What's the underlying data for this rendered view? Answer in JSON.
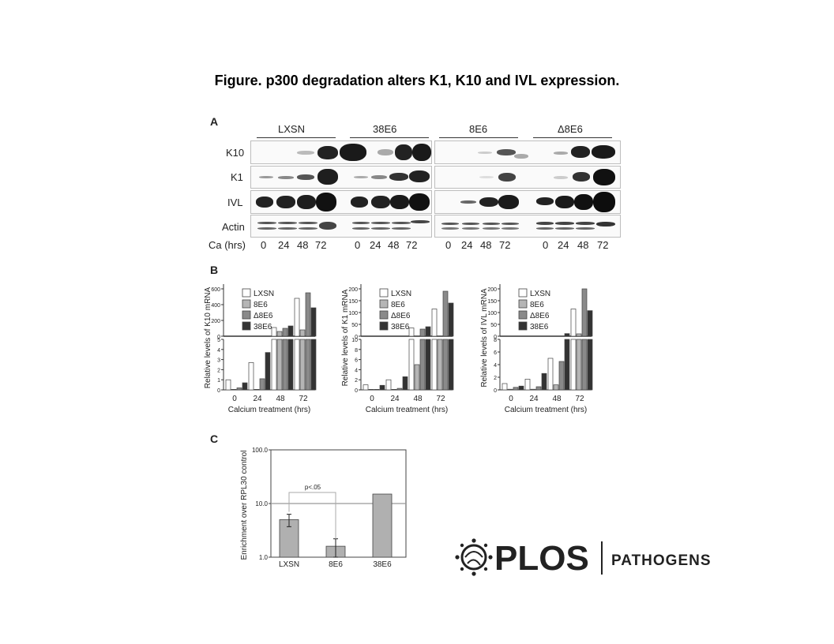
{
  "title": "Figure. p300 degradation alters K1, K10 and IVL expression.",
  "panelA": {
    "letter": "A",
    "groups": [
      "LXSN",
      "38E6",
      "8E6",
      "Δ8E6"
    ],
    "rows": [
      "K10",
      "K1",
      "IVL",
      "Actin"
    ],
    "time_label": "Ca (hrs)",
    "times": [
      "0",
      "24",
      "48",
      "72"
    ]
  },
  "panelB": {
    "letter": "B",
    "legend": [
      "LXSN",
      "8E6",
      "Δ8E6",
      "38E6"
    ],
    "legend_colors": [
      "#ffffff",
      "#b5b5b5",
      "#8a8a8a",
      "#333333"
    ],
    "xlabel": "Calcium treatment (hrs)",
    "categories": [
      "0",
      "24",
      "48",
      "72"
    ],
    "charts": [
      {
        "ylabel": "Relative levels of K10 mRNA",
        "top_ticks": [
          "600",
          "400",
          "200",
          "0"
        ],
        "bottom_ticks": [
          "5",
          "4",
          "3",
          "2",
          "1",
          "0"
        ],
        "break_lo": 5,
        "top_max": 600,
        "values": [
          [
            1.0,
            2.7,
            110,
            480
          ],
          [
            0.05,
            0.05,
            60,
            80
          ],
          [
            0.2,
            1.1,
            100,
            550
          ],
          [
            0.7,
            3.7,
            130,
            360
          ]
        ]
      },
      {
        "ylabel": "Relative levels of K1 mRNA",
        "top_ticks": [
          "200",
          "150",
          "100",
          "50",
          "0"
        ],
        "bottom_ticks": [
          "10",
          "8",
          "6",
          "4",
          "2",
          "0"
        ],
        "break_lo": 10,
        "top_max": 200,
        "values": [
          [
            1.0,
            2.0,
            35,
            115
          ],
          [
            0.1,
            0.1,
            5,
            10
          ],
          [
            0.1,
            0.3,
            30,
            190
          ],
          [
            0.9,
            2.6,
            40,
            140
          ]
        ]
      },
      {
        "ylabel": "Relative levels of IVL mRNA",
        "top_ticks": [
          "200",
          "150",
          "100",
          "50",
          "0"
        ],
        "bottom_ticks": [
          "8",
          "6",
          "4",
          "2",
          "0"
        ],
        "break_lo": 8,
        "top_max": 200,
        "values": [
          [
            1.0,
            1.7,
            5.0,
            115
          ],
          [
            0.1,
            0.1,
            0.8,
            10
          ],
          [
            0.4,
            0.5,
            4.5,
            200
          ],
          [
            0.6,
            2.6,
            11,
            108
          ]
        ]
      }
    ]
  },
  "panelC": {
    "letter": "C",
    "ylabel": "Enrichment over RPL30 control",
    "y_ticks": [
      "100.0",
      "10.0",
      "1.0"
    ],
    "categories": [
      "LXSN",
      "8E6",
      "38E6"
    ],
    "values": [
      5.0,
      1.6,
      15.0
    ],
    "errors": [
      1.3,
      0.6,
      0
    ],
    "annotation": "p<.05"
  },
  "chart_data": [
    {
      "type": "bar",
      "title": "",
      "xlabel": "Calcium treatment (hrs)",
      "ylabel": "Relative levels of K10 mRNA",
      "categories": [
        "0",
        "24",
        "48",
        "72"
      ],
      "series": [
        {
          "name": "LXSN",
          "values": [
            1.0,
            2.7,
            110,
            480
          ]
        },
        {
          "name": "8E6",
          "values": [
            0.05,
            0.05,
            60,
            80
          ]
        },
        {
          "name": "Δ8E6",
          "values": [
            0.2,
            1.1,
            100,
            550
          ]
        },
        {
          "name": "38E6",
          "values": [
            0.7,
            3.7,
            130,
            360
          ]
        }
      ],
      "ylim": [
        0,
        600
      ],
      "axis_break": [
        5,
        5
      ]
    },
    {
      "type": "bar",
      "title": "",
      "xlabel": "Calcium treatment (hrs)",
      "ylabel": "Relative levels of K1 mRNA",
      "categories": [
        "0",
        "24",
        "48",
        "72"
      ],
      "series": [
        {
          "name": "LXSN",
          "values": [
            1.0,
            2.0,
            35,
            115
          ]
        },
        {
          "name": "8E6",
          "values": [
            0.1,
            0.1,
            5,
            10
          ]
        },
        {
          "name": "Δ8E6",
          "values": [
            0.1,
            0.3,
            30,
            190
          ]
        },
        {
          "name": "38E6",
          "values": [
            0.9,
            2.6,
            40,
            140
          ]
        }
      ],
      "ylim": [
        0,
        200
      ],
      "axis_break": [
        10,
        10
      ]
    },
    {
      "type": "bar",
      "title": "",
      "xlabel": "Calcium treatment (hrs)",
      "ylabel": "Relative levels of IVL mRNA",
      "categories": [
        "0",
        "24",
        "48",
        "72"
      ],
      "series": [
        {
          "name": "LXSN",
          "values": [
            1.0,
            1.7,
            5.0,
            115
          ]
        },
        {
          "name": "8E6",
          "values": [
            0.1,
            0.1,
            0.8,
            10
          ]
        },
        {
          "name": "Δ8E6",
          "values": [
            0.4,
            0.5,
            4.5,
            200
          ]
        },
        {
          "name": "38E6",
          "values": [
            0.6,
            2.6,
            11,
            108
          ]
        }
      ],
      "ylim": [
        0,
        200
      ],
      "axis_break": [
        8,
        8
      ]
    },
    {
      "type": "bar",
      "title": "",
      "xlabel": "",
      "ylabel": "Enrichment over RPL30 control",
      "categories": [
        "LXSN",
        "8E6",
        "38E6"
      ],
      "values": [
        5.0,
        1.6,
        15.0
      ],
      "errors": [
        1.3,
        0.6,
        0
      ],
      "yscale": "log",
      "ylim": [
        1.0,
        100.0
      ],
      "reference_line": 10.0,
      "annotation": "p<.05"
    }
  ],
  "logo": {
    "brand": "PLOS",
    "journal": "PATHOGENS"
  }
}
